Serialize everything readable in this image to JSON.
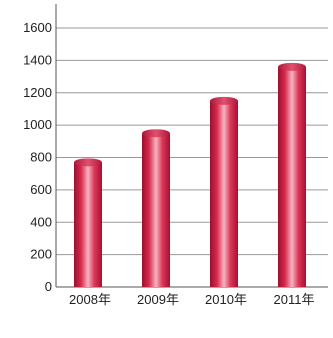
{
  "chart_data": {
    "type": "bar",
    "title": "",
    "xlabel": "",
    "ylabel": "",
    "categories": [
      "2008年",
      "2009年",
      "2010年",
      "2011年"
    ],
    "values": [
      770,
      950,
      1150,
      1360
    ],
    "ylim": [
      0,
      1600
    ],
    "yticks": [
      0,
      200,
      400,
      600,
      800,
      1000,
      1200,
      1400,
      1600
    ],
    "ytick_labels": [
      "0",
      "200",
      "400",
      "600",
      "800",
      "1000",
      "1200",
      "1400",
      "1600"
    ],
    "grid": true,
    "legend": "none",
    "bar_color": "#c8143a",
    "bar_highlight_color": "#f7a8b8"
  }
}
